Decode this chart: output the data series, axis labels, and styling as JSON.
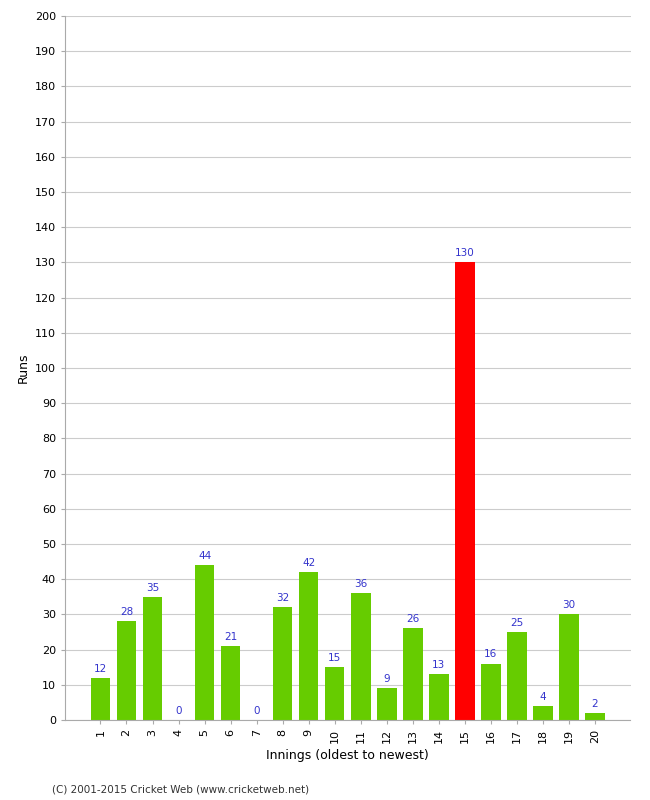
{
  "xlabel": "Innings (oldest to newest)",
  "ylabel": "Runs",
  "categories": [
    1,
    2,
    3,
    4,
    5,
    6,
    7,
    8,
    9,
    10,
    11,
    12,
    13,
    14,
    15,
    16,
    17,
    18,
    19,
    20
  ],
  "values": [
    12,
    28,
    35,
    0,
    44,
    21,
    0,
    32,
    42,
    15,
    36,
    9,
    26,
    13,
    130,
    16,
    25,
    4,
    30,
    2
  ],
  "bar_colors": [
    "#66cc00",
    "#66cc00",
    "#66cc00",
    "#66cc00",
    "#66cc00",
    "#66cc00",
    "#66cc00",
    "#66cc00",
    "#66cc00",
    "#66cc00",
    "#66cc00",
    "#66cc00",
    "#66cc00",
    "#66cc00",
    "#ff0000",
    "#66cc00",
    "#66cc00",
    "#66cc00",
    "#66cc00",
    "#66cc00"
  ],
  "label_color": "#3333cc",
  "ylim": [
    0,
    200
  ],
  "yticks": [
    0,
    10,
    20,
    30,
    40,
    50,
    60,
    70,
    80,
    90,
    100,
    110,
    120,
    130,
    140,
    150,
    160,
    170,
    180,
    190,
    200
  ],
  "background_color": "#ffffff",
  "grid_color": "#cccccc",
  "footer": "(C) 2001-2015 Cricket Web (www.cricketweb.net)",
  "label_fontsize": 7.5,
  "axis_label_fontsize": 9,
  "tick_fontsize": 8
}
